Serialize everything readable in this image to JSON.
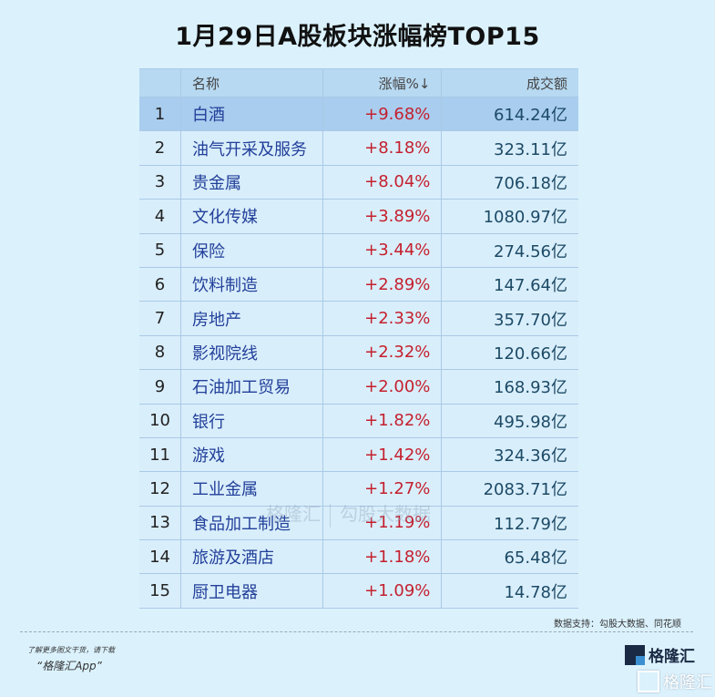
{
  "title": "1月29日A股板块涨幅榜TOP15",
  "table": {
    "headers": {
      "rank": "",
      "name": "名称",
      "change": "涨幅%↓",
      "amount": "成交额"
    },
    "rows": [
      {
        "rank": "1",
        "name": "白酒",
        "change": "+9.68%",
        "amount": "614.24亿"
      },
      {
        "rank": "2",
        "name": "油气开采及服务",
        "change": "+8.18%",
        "amount": "323.11亿"
      },
      {
        "rank": "3",
        "name": "贵金属",
        "change": "+8.04%",
        "amount": "706.18亿"
      },
      {
        "rank": "4",
        "name": "文化传媒",
        "change": "+3.89%",
        "amount": "1080.97亿"
      },
      {
        "rank": "5",
        "name": "保险",
        "change": "+3.44%",
        "amount": "274.56亿"
      },
      {
        "rank": "6",
        "name": "饮料制造",
        "change": "+2.89%",
        "amount": "147.64亿"
      },
      {
        "rank": "7",
        "name": "房地产",
        "change": "+2.33%",
        "amount": "357.70亿"
      },
      {
        "rank": "8",
        "name": "影视院线",
        "change": "+2.32%",
        "amount": "120.66亿"
      },
      {
        "rank": "9",
        "name": "石油加工贸易",
        "change": "+2.00%",
        "amount": "168.93亿"
      },
      {
        "rank": "10",
        "name": "银行",
        "change": "+1.82%",
        "amount": "495.98亿"
      },
      {
        "rank": "11",
        "name": "游戏",
        "change": "+1.42%",
        "amount": "324.36亿"
      },
      {
        "rank": "12",
        "name": "工业金属",
        "change": "+1.27%",
        "amount": "2083.71亿"
      },
      {
        "rank": "13",
        "name": "食品加工制造",
        "change": "+1.19%",
        "amount": "112.79亿"
      },
      {
        "rank": "14",
        "name": "旅游及酒店",
        "change": "+1.18%",
        "amount": "65.48亿"
      },
      {
        "rank": "15",
        "name": "厨卫电器",
        "change": "+1.09%",
        "amount": "14.78亿"
      }
    ]
  },
  "watermark": {
    "left": "格隆汇",
    "right": "勾股大数据"
  },
  "source": "数据支持：勾股大数据、同花顺",
  "footer": {
    "promo_line1": "了解更多图文干货，请下载",
    "promo_line2": "“格隆汇App”",
    "logo_text": "格隆汇",
    "logo_text2": "格隆汇"
  },
  "colors": {
    "background": "#dbf2fd",
    "header": "#b7d9f1",
    "highlight": "#a9cdee",
    "change": "#c4202e",
    "name": "#22409a",
    "amount": "#1c4a66"
  }
}
